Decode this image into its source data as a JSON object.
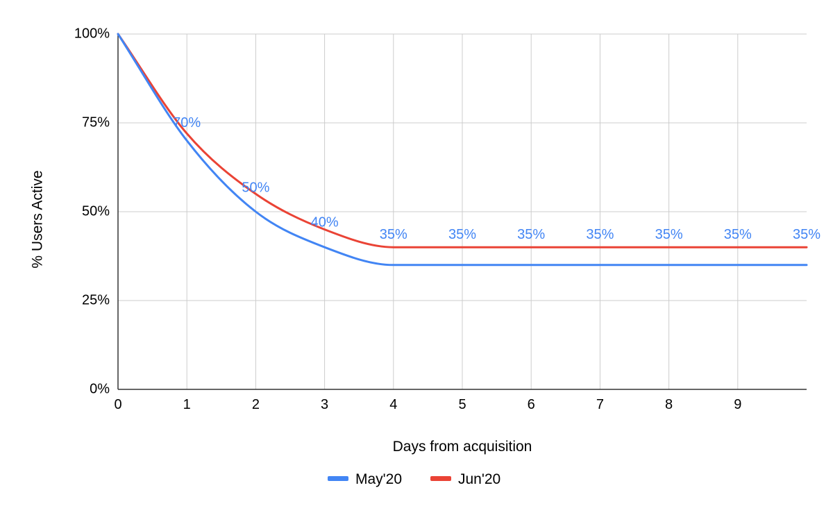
{
  "chart_data": {
    "type": "line",
    "title": "",
    "xlabel": "Days from acquisition",
    "ylabel": "% Users Active",
    "xlim": [
      0,
      10
    ],
    "ylim": [
      0,
      100
    ],
    "x_ticks": [
      {
        "value": 0,
        "label": "0"
      },
      {
        "value": 1,
        "label": "1"
      },
      {
        "value": 2,
        "label": "2"
      },
      {
        "value": 3,
        "label": "3"
      },
      {
        "value": 4,
        "label": "4"
      },
      {
        "value": 5,
        "label": "5"
      },
      {
        "value": 6,
        "label": "6"
      },
      {
        "value": 7,
        "label": "7"
      },
      {
        "value": 8,
        "label": "8"
      },
      {
        "value": 9,
        "label": "9"
      }
    ],
    "y_ticks": [
      {
        "value": 0,
        "label": "0%"
      },
      {
        "value": 25,
        "label": "25%"
      },
      {
        "value": 50,
        "label": "50%"
      },
      {
        "value": 75,
        "label": "75%"
      },
      {
        "value": 100,
        "label": "100%"
      }
    ],
    "x": [
      0,
      1,
      2,
      3,
      4,
      5,
      6,
      7,
      8,
      9,
      10
    ],
    "grid": true,
    "legend_position": "bottom",
    "series": [
      {
        "name": "May'20",
        "color": "#4285f4",
        "values": [
          100,
          70,
          50,
          40,
          35,
          35,
          35,
          35,
          35,
          35,
          35
        ]
      },
      {
        "name": "Jun'20",
        "color": "#ea4335",
        "values": [
          100,
          72,
          55,
          45,
          40,
          40,
          40,
          40,
          40,
          40,
          40
        ]
      }
    ],
    "data_labels": [
      {
        "x": 1,
        "y": 70,
        "text": "70%"
      },
      {
        "x": 2,
        "y": 50,
        "text": "50%"
      },
      {
        "x": 3,
        "y": 40,
        "text": "40%"
      },
      {
        "x": 4,
        "y": 35,
        "text": "35%"
      },
      {
        "x": 5,
        "y": 35,
        "text": "35%"
      },
      {
        "x": 6,
        "y": 35,
        "text": "35%"
      },
      {
        "x": 7,
        "y": 35,
        "text": "35%"
      },
      {
        "x": 8,
        "y": 35,
        "text": "35%"
      },
      {
        "x": 9,
        "y": 35,
        "text": "35%"
      },
      {
        "x": 10,
        "y": 35,
        "text": "35%"
      }
    ],
    "data_label_color": "#4285f4",
    "gridline_color": "#cccccc",
    "axis_color": "#333333"
  }
}
